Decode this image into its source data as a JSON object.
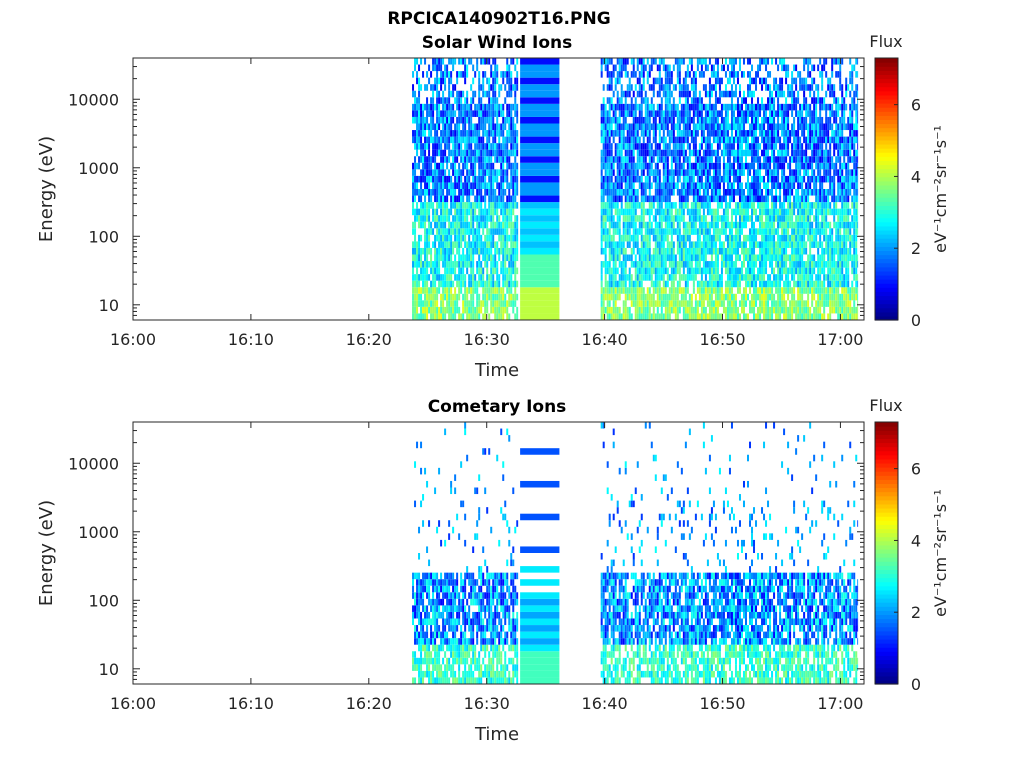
{
  "figure": {
    "title": "RPCICA140902T16.PNG"
  },
  "chart_data": [
    {
      "type": "heatmap",
      "title": "Solar Wind Ions",
      "xlabel": "Time",
      "ylabel": "Energy (eV)",
      "x_ticks": [
        "16:00",
        "16:10",
        "16:20",
        "16:30",
        "16:40",
        "16:50",
        "17:00"
      ],
      "x_range": [
        "16:00",
        "17:02"
      ],
      "y_scale": "log",
      "y_ticks": [
        "10",
        "100",
        "1000",
        "10000"
      ],
      "y_range": [
        6,
        40000
      ],
      "colorbar": {
        "label": "Flux",
        "units": "eV⁻¹cm⁻²sr⁻¹s⁻¹",
        "range": [
          0,
          7.3
        ],
        "ticks": [
          "0",
          "2",
          "4",
          "6"
        ],
        "colormap": "jet"
      },
      "data_intervals": [
        [
          "16:23:40",
          "16:32:40"
        ],
        [
          "16:32:50",
          "16:36:10"
        ],
        [
          "16:39:40",
          "17:01:30"
        ]
      ],
      "data_note": "Flux mostly ~1.5–3.5; highest (~4) in lowest energy bins"
    },
    {
      "type": "heatmap",
      "title": "Cometary Ions",
      "xlabel": "Time",
      "ylabel": "Energy (eV)",
      "x_ticks": [
        "16:00",
        "16:10",
        "16:20",
        "16:30",
        "16:40",
        "16:50",
        "17:00"
      ],
      "x_range": [
        "16:00",
        "17:02"
      ],
      "y_scale": "log",
      "y_ticks": [
        "10",
        "100",
        "1000",
        "10000"
      ],
      "y_range": [
        6,
        40000
      ],
      "colorbar": {
        "label": "Flux",
        "units": "eV⁻¹cm⁻²sr⁻¹s⁻¹",
        "range": [
          0,
          7.3
        ],
        "ticks": [
          "0",
          "2",
          "4",
          "6"
        ],
        "colormap": "jet"
      },
      "data_intervals": [
        [
          "16:23:40",
          "16:32:40"
        ],
        [
          "16:32:50",
          "16:36:10"
        ],
        [
          "16:39:40",
          "17:01:30"
        ]
      ],
      "data_note": "Sparse at high energy; dense below ~200 eV, flux ~1–3.5"
    }
  ]
}
